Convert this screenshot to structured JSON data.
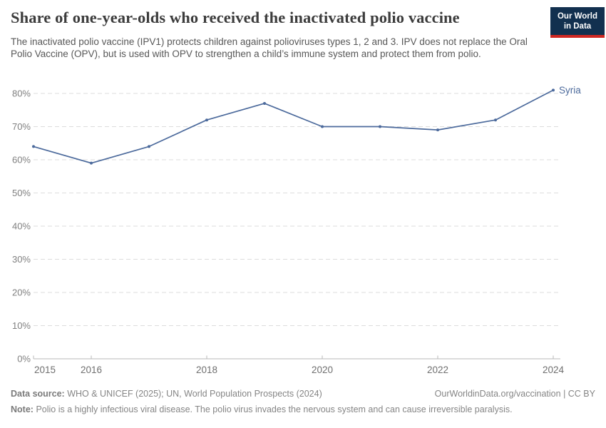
{
  "header": {
    "title": "Share of one-year-olds who received the inactivated polio vaccine",
    "subtitle": "The inactivated polio vaccine (IPV1) protects children against polioviruses types 1, 2 and 3. IPV does not replace the Oral Polio Vaccine (OPV), but is used with OPV to strengthen a child’s immune system and protect them from polio.",
    "logo": {
      "line1": "Our World",
      "line2": "in Data"
    }
  },
  "chart_data": {
    "type": "line",
    "title": "Share of one-year-olds who received the inactivated polio vaccine",
    "x": [
      2015,
      2016,
      2017,
      2018,
      2019,
      2020,
      2021,
      2022,
      2023,
      2024
    ],
    "series": [
      {
        "name": "Syria",
        "values": [
          64,
          59,
          64,
          72,
          77,
          70,
          70,
          69,
          72,
          81
        ],
        "color": "#4c6a9c",
        "unit": "%"
      }
    ],
    "xlabel": "",
    "ylabel": "",
    "ylim": [
      0,
      80
    ],
    "yticks": [
      0,
      10,
      20,
      30,
      40,
      50,
      60,
      70,
      80
    ],
    "ytick_suffix": "%",
    "xticks": [
      2015,
      2016,
      2018,
      2020,
      2022,
      2024
    ],
    "grid": "horizontal-dashed",
    "legend": "end-of-line-label",
    "markers": "dots"
  },
  "footer": {
    "data_source_label": "Data source:",
    "data_source": "WHO & UNICEF (2025); UN, World Population Prospects (2024)",
    "link": "OurWorldinData.org/vaccination | CC BY",
    "note_label": "Note:",
    "note": "Polio is a highly infectious viral disease. The polio virus invades the nervous system and can cause irreversible paralysis."
  },
  "colors": {
    "line": "#4c6a9c",
    "entity_label": "#4c6a9c",
    "grid": "#dcdcdc",
    "axis": "#b8b8b8",
    "ytick_label": "#808080",
    "xtick_label": "#6f6f6f",
    "title": "#3c3c3c",
    "subtitle": "#575757",
    "footer": "#858585",
    "logo_bg": "#12304f",
    "logo_stripe": "#cf2722"
  }
}
